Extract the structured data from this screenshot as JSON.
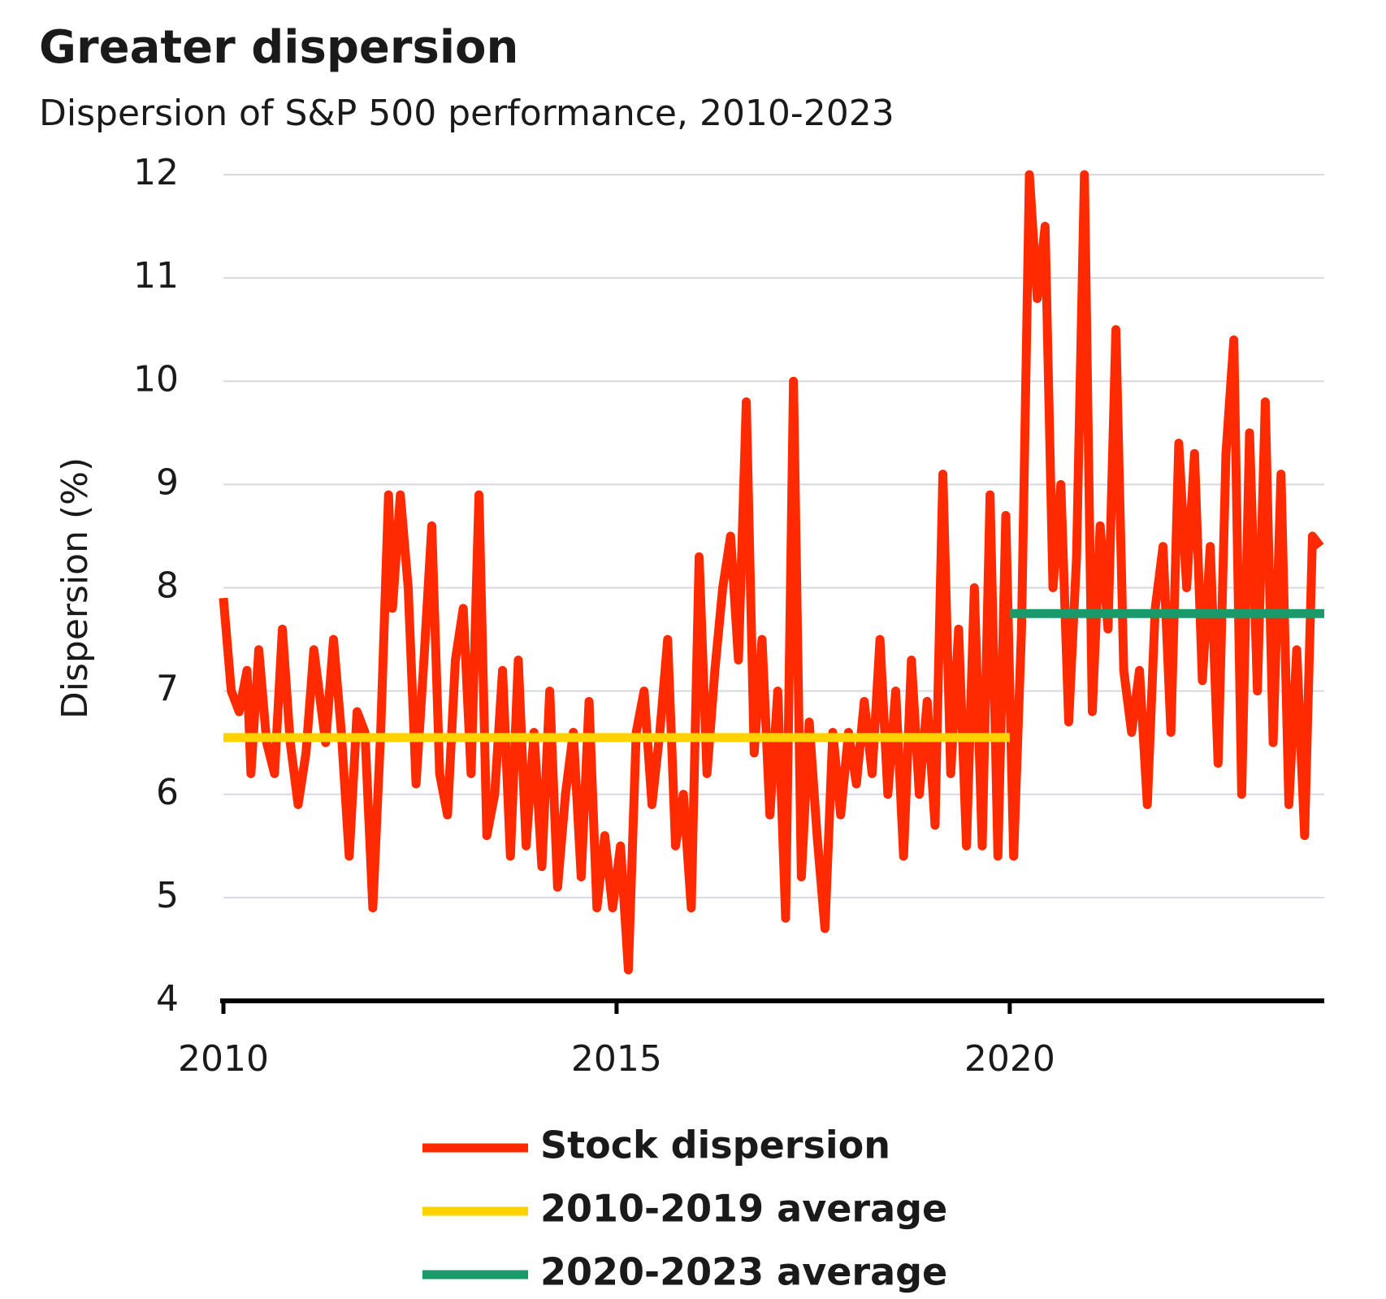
{
  "chart_data": {
    "type": "line",
    "title": "Greater dispersion",
    "subtitle": "Dispersion of S&P 500 performance, 2010-2023",
    "y_label": "Dispersion (%)",
    "xlim": [
      2010,
      2024
    ],
    "xticks": [
      2010,
      2015,
      2020
    ],
    "ylim": [
      4,
      12
    ],
    "yticks": [
      4,
      5,
      6,
      7,
      8,
      9,
      10,
      11,
      12
    ],
    "grid": true,
    "legend": "bottom",
    "series": [
      {
        "name": "Stock dispersion",
        "color": "#ff2a00",
        "x": [
          2010.0,
          2010.1,
          2010.2,
          2010.3,
          2010.35,
          2010.45,
          2010.55,
          2010.65,
          2010.75,
          2010.85,
          2010.95,
          2011.05,
          2011.15,
          2011.3,
          2011.4,
          2011.5,
          2011.6,
          2011.7,
          2011.8,
          2011.9,
          2012.0,
          2012.1,
          2012.15,
          2012.25,
          2012.35,
          2012.45,
          2012.55,
          2012.65,
          2012.75,
          2012.85,
          2012.95,
          2013.05,
          2013.15,
          2013.25,
          2013.35,
          2013.45,
          2013.55,
          2013.65,
          2013.75,
          2013.85,
          2013.95,
          2014.05,
          2014.15,
          2014.25,
          2014.35,
          2014.45,
          2014.55,
          2014.65,
          2014.75,
          2014.85,
          2014.95,
          2015.05,
          2015.15,
          2015.25,
          2015.35,
          2015.45,
          2015.55,
          2015.65,
          2015.75,
          2015.85,
          2015.95,
          2016.05,
          2016.15,
          2016.25,
          2016.35,
          2016.45,
          2016.55,
          2016.65,
          2016.75,
          2016.85,
          2016.95,
          2017.05,
          2017.15,
          2017.25,
          2017.35,
          2017.45,
          2017.55,
          2017.65,
          2017.75,
          2017.85,
          2017.95,
          2018.05,
          2018.15,
          2018.25,
          2018.35,
          2018.45,
          2018.55,
          2018.65,
          2018.75,
          2018.85,
          2018.95,
          2019.05,
          2019.15,
          2019.25,
          2019.35,
          2019.45,
          2019.55,
          2019.65,
          2019.75,
          2019.85,
          2019.95,
          2020.05,
          2020.15,
          2020.25,
          2020.35,
          2020.45,
          2020.55,
          2020.65,
          2020.75,
          2020.85,
          2020.95,
          2021.05,
          2021.15,
          2021.25,
          2021.35,
          2021.45,
          2021.55,
          2021.65,
          2021.75,
          2021.85,
          2021.95,
          2022.05,
          2022.15,
          2022.25,
          2022.35,
          2022.45,
          2022.55,
          2022.65,
          2022.75,
          2022.85,
          2022.95,
          2023.05,
          2023.15,
          2023.25,
          2023.35,
          2023.45,
          2023.55,
          2023.65,
          2023.75,
          2023.85,
          2023.95
        ],
        "values": [
          7.9,
          7.0,
          6.8,
          7.2,
          6.2,
          7.4,
          6.5,
          6.2,
          7.6,
          6.5,
          5.9,
          6.4,
          7.4,
          6.5,
          7.5,
          6.6,
          5.4,
          6.8,
          6.6,
          4.9,
          6.6,
          8.9,
          7.8,
          8.9,
          8.0,
          6.1,
          7.3,
          8.6,
          6.2,
          5.8,
          7.3,
          7.8,
          6.2,
          8.9,
          5.6,
          6.0,
          7.2,
          5.4,
          7.3,
          5.5,
          6.6,
          5.3,
          7.0,
          5.1,
          6.0,
          6.6,
          5.2,
          6.9,
          4.9,
          5.6,
          4.9,
          5.5,
          4.3,
          6.6,
          7.0,
          5.9,
          6.6,
          7.5,
          5.5,
          6.0,
          4.9,
          8.3,
          6.2,
          7.2,
          8.0,
          8.5,
          7.3,
          9.8,
          6.4,
          7.5,
          5.8,
          7.0,
          4.8,
          10.0,
          5.2,
          6.7,
          5.6,
          4.7,
          6.6,
          5.8,
          6.6,
          6.1,
          6.9,
          6.2,
          7.5,
          6.0,
          7.0,
          5.4,
          7.3,
          6.0,
          6.9,
          5.7,
          9.1,
          6.2,
          7.6,
          5.5,
          8.0,
          5.5,
          8.9,
          5.4,
          8.7,
          5.4,
          7.6,
          12,
          10.8,
          11.5,
          8.0,
          9.0,
          6.7,
          8.3,
          12,
          6.8,
          8.6,
          7.6,
          10.5,
          7.2,
          6.6,
          7.2,
          5.9,
          7.8,
          8.4,
          6.6,
          9.4,
          8.0,
          9.3,
          7.1,
          8.4,
          6.3,
          9.3,
          10.4,
          6.0,
          9.5,
          7.0,
          9.8,
          6.5,
          9.1,
          5.9,
          7.4,
          5.6,
          8.5,
          8.4
        ]
      },
      {
        "name": "2010-2019 average",
        "color": "#ffd200",
        "x": [
          2010,
          2020
        ],
        "values": [
          6.55,
          6.55
        ]
      },
      {
        "name": "2020-2023 average",
        "color": "#1a9a6a",
        "x": [
          2020,
          2024
        ],
        "values": [
          7.75,
          7.75
        ]
      }
    ]
  }
}
